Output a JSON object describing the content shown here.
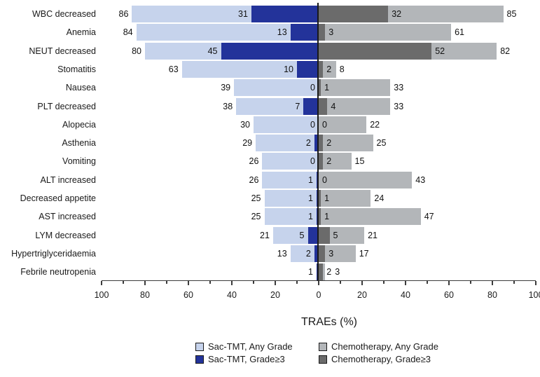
{
  "page": {
    "background": "#ffffff"
  },
  "colors": {
    "sac_any": "#c6d3ec",
    "sac_g3": "#23339a",
    "chemo_any": "#b3b6b9",
    "chemo_g3": "#6b6b6b",
    "axis": "#3c3c3c",
    "text": "#1a1a1a"
  },
  "chart_data": {
    "type": "bar",
    "variant": "diverging-tornado",
    "title": "",
    "xlabel": "TRAEs (%)",
    "xlim": [
      -100,
      100
    ],
    "x_major_tick_labels": [
      "100",
      "80",
      "60",
      "40",
      "20",
      "0",
      "20",
      "40",
      "60",
      "80",
      "100"
    ],
    "minor_tick_step": 10,
    "grid": false,
    "legend_position": "bottom",
    "left_group": "Sac-TMT",
    "right_group": "Chemotherapy",
    "categories": [
      "WBC decreased",
      "Anemia",
      "NEUT decreased",
      "Stomatitis",
      "Nausea",
      "PLT decreased",
      "Alopecia",
      "Asthenia",
      "Vomiting",
      "ALT increased",
      "Decreased appetite",
      "AST increased",
      "LYM decreased",
      "Hypertriglyceridaemia",
      "Febrile neutropenia"
    ],
    "series": [
      {
        "name": "Sac-TMT, Any Grade",
        "side": "left",
        "color_key": "sac_any",
        "values": [
          86,
          84,
          80,
          63,
          39,
          38,
          30,
          29,
          26,
          26,
          25,
          25,
          21,
          13,
          1
        ]
      },
      {
        "name": "Sac-TMT, Grade≥3",
        "side": "left",
        "color_key": "sac_g3",
        "values": [
          31,
          13,
          45,
          10,
          0,
          7,
          0,
          2,
          0,
          1,
          1,
          1,
          5,
          2,
          1
        ]
      },
      {
        "name": "Chemotherapy, Any Grade",
        "side": "right",
        "color_key": "chemo_any",
        "values": [
          85,
          61,
          82,
          8,
          33,
          33,
          22,
          25,
          15,
          43,
          24,
          47,
          21,
          17,
          3
        ]
      },
      {
        "name": "Chemotherapy, Grade≥3",
        "side": "right",
        "color_key": "chemo_g3",
        "values": [
          32,
          3,
          52,
          2,
          1,
          4,
          0,
          2,
          2,
          0,
          1,
          1,
          5,
          3,
          2
        ]
      }
    ],
    "value_labels": {
      "sac_any": [
        "86",
        "84",
        "80",
        "63",
        "39",
        "38",
        "30",
        "29",
        "26",
        "26",
        "25",
        "25",
        "21",
        "13",
        "1"
      ],
      "sac_g3": [
        "31",
        "13",
        "45",
        "10",
        "0",
        "7",
        "0",
        "2",
        "0",
        "1",
        "1",
        "1",
        "5",
        "2",
        ""
      ],
      "chemo_g3": [
        "32",
        "3",
        "52",
        "2",
        "1",
        "4",
        "0",
        "2",
        "2",
        "0",
        "1",
        "1",
        "5",
        "3",
        "2"
      ],
      "chemo_any": [
        "85",
        "61",
        "82",
        "8",
        "33",
        "33",
        "22",
        "25",
        "15",
        "43",
        "24",
        "47",
        "21",
        "17",
        "3"
      ]
    },
    "legend": [
      {
        "label": "Sac-TMT, Any Grade",
        "color_key": "sac_any"
      },
      {
        "label": "Chemotherapy, Any Grade",
        "color_key": "chemo_any"
      },
      {
        "label": "Sac-TMT, Grade≥3",
        "color_key": "sac_g3"
      },
      {
        "label": "Chemotherapy, Grade≥3",
        "color_key": "chemo_g3"
      }
    ]
  }
}
